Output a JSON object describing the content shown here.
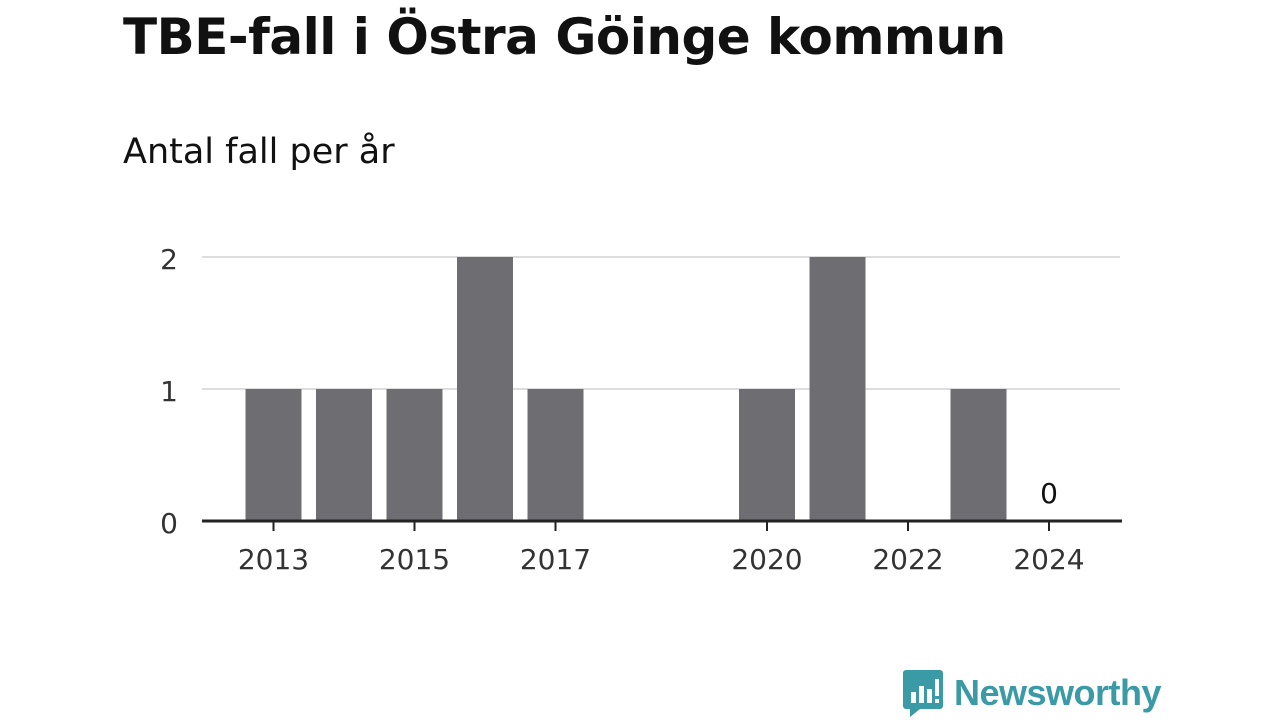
{
  "title": "TBE-fall i Östra Göinge kommun",
  "subtitle": "Antal fall per år",
  "brand": {
    "name": "Newsworthy",
    "color": "#3a9aa5",
    "icon": "bar-chart-speech-bubble-icon"
  },
  "chart_data": {
    "type": "bar",
    "categories": [
      "2013",
      "2014",
      "2015",
      "2016",
      "2017",
      "2018",
      "2019",
      "2020",
      "2021",
      "2022",
      "2023",
      "2024"
    ],
    "values": [
      1,
      1,
      1,
      2,
      1,
      0,
      0,
      1,
      2,
      0,
      1,
      0
    ],
    "x_tick_labels": [
      "2013",
      "2015",
      "2017",
      "2020",
      "2022",
      "2024"
    ],
    "y_ticks": [
      0,
      1,
      2
    ],
    "ylim": [
      0,
      2
    ],
    "annotations": [
      {
        "category": "2024",
        "text": "0"
      }
    ],
    "bar_color": "#6e6d72",
    "grid": true
  }
}
